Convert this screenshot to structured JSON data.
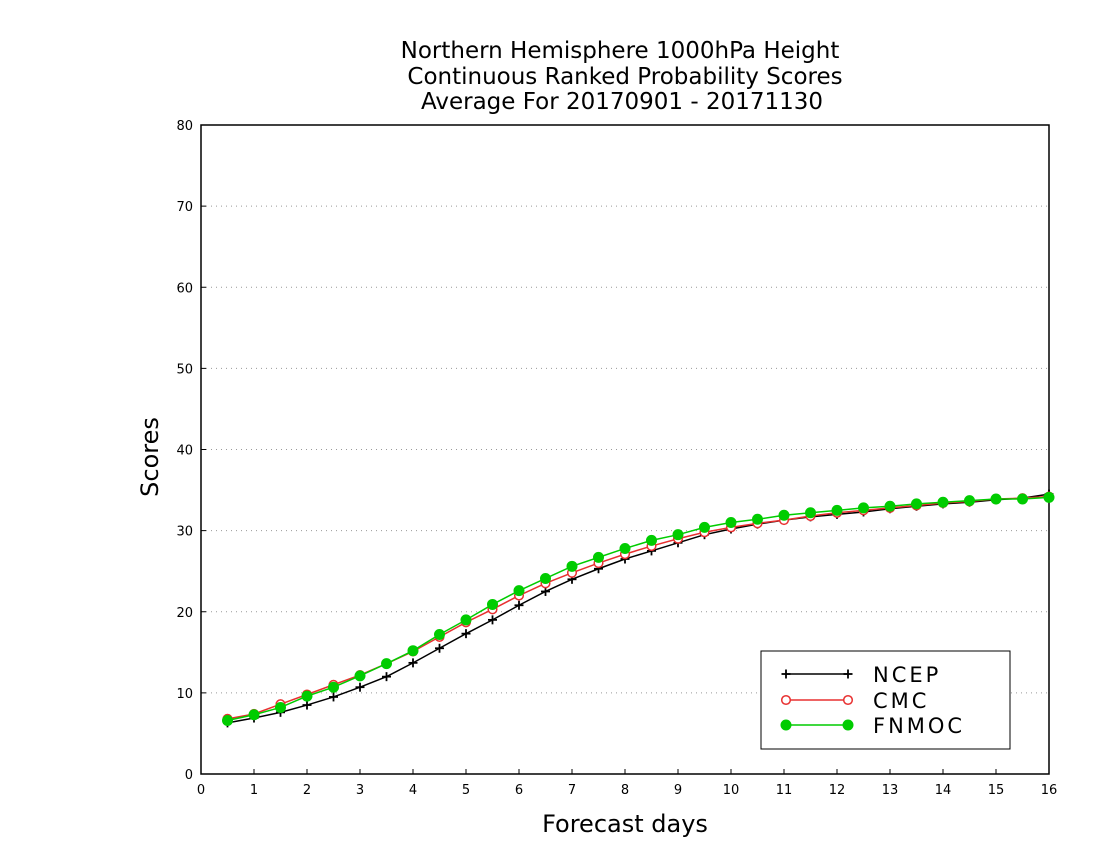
{
  "chart_data": {
    "type": "line",
    "title": [
      "Northern Hemisphere 1000hPa Height",
      "Continuous Ranked Probability Scores",
      "Average For 20170901 - 20171130"
    ],
    "xlabel": "Forecast days",
    "ylabel": "Scores",
    "xlim": [
      0,
      16
    ],
    "ylim": [
      0,
      80
    ],
    "xticks": [
      0,
      1,
      2,
      3,
      4,
      5,
      6,
      7,
      8,
      9,
      10,
      11,
      12,
      13,
      14,
      15,
      16
    ],
    "yticks": [
      0,
      10,
      20,
      30,
      40,
      50,
      60,
      70,
      80
    ],
    "grid": "horizontal dotted",
    "legend_position": "bottom-right",
    "x": [
      0.5,
      1,
      1.5,
      2,
      2.5,
      3,
      3.5,
      4,
      4.5,
      5,
      5.5,
      6,
      6.5,
      7,
      7.5,
      8,
      8.5,
      9,
      9.5,
      10,
      10.5,
      11,
      11.5,
      12,
      12.5,
      13,
      13.5,
      14,
      14.5,
      15,
      15.5,
      16
    ],
    "series": [
      {
        "name": "NCEP",
        "color": "#000000",
        "marker": "plus",
        "values": [
          6.3,
          6.9,
          7.6,
          8.5,
          9.5,
          10.7,
          12.0,
          13.7,
          15.5,
          17.3,
          19.0,
          20.8,
          22.5,
          24.0,
          25.3,
          26.5,
          27.5,
          28.5,
          29.5,
          30.2,
          30.8,
          31.3,
          31.7,
          32.0,
          32.3,
          32.7,
          33.0,
          33.3,
          33.5,
          33.8,
          34.0,
          34.5
        ]
      },
      {
        "name": "CMC",
        "color": "#e83030",
        "marker": "open-circle",
        "values": [
          6.8,
          7.4,
          8.6,
          9.8,
          11.0,
          12.2,
          13.6,
          15.1,
          16.9,
          18.7,
          20.3,
          22.0,
          23.5,
          24.8,
          26.0,
          27.1,
          28.1,
          29.0,
          29.8,
          30.4,
          30.9,
          31.3,
          31.8,
          32.2,
          32.5,
          32.8,
          33.1,
          33.4,
          33.6,
          33.9,
          34.0,
          34.2
        ]
      },
      {
        "name": "FNMOC",
        "color": "#00cc00",
        "marker": "filled-circle",
        "values": [
          6.6,
          7.3,
          8.2,
          9.6,
          10.7,
          12.1,
          13.6,
          15.2,
          17.2,
          19.0,
          20.9,
          22.6,
          24.1,
          25.6,
          26.7,
          27.8,
          28.8,
          29.5,
          30.4,
          31.0,
          31.4,
          31.9,
          32.2,
          32.5,
          32.8,
          33.0,
          33.3,
          33.5,
          33.7,
          33.9,
          33.9,
          34.1
        ]
      }
    ]
  }
}
